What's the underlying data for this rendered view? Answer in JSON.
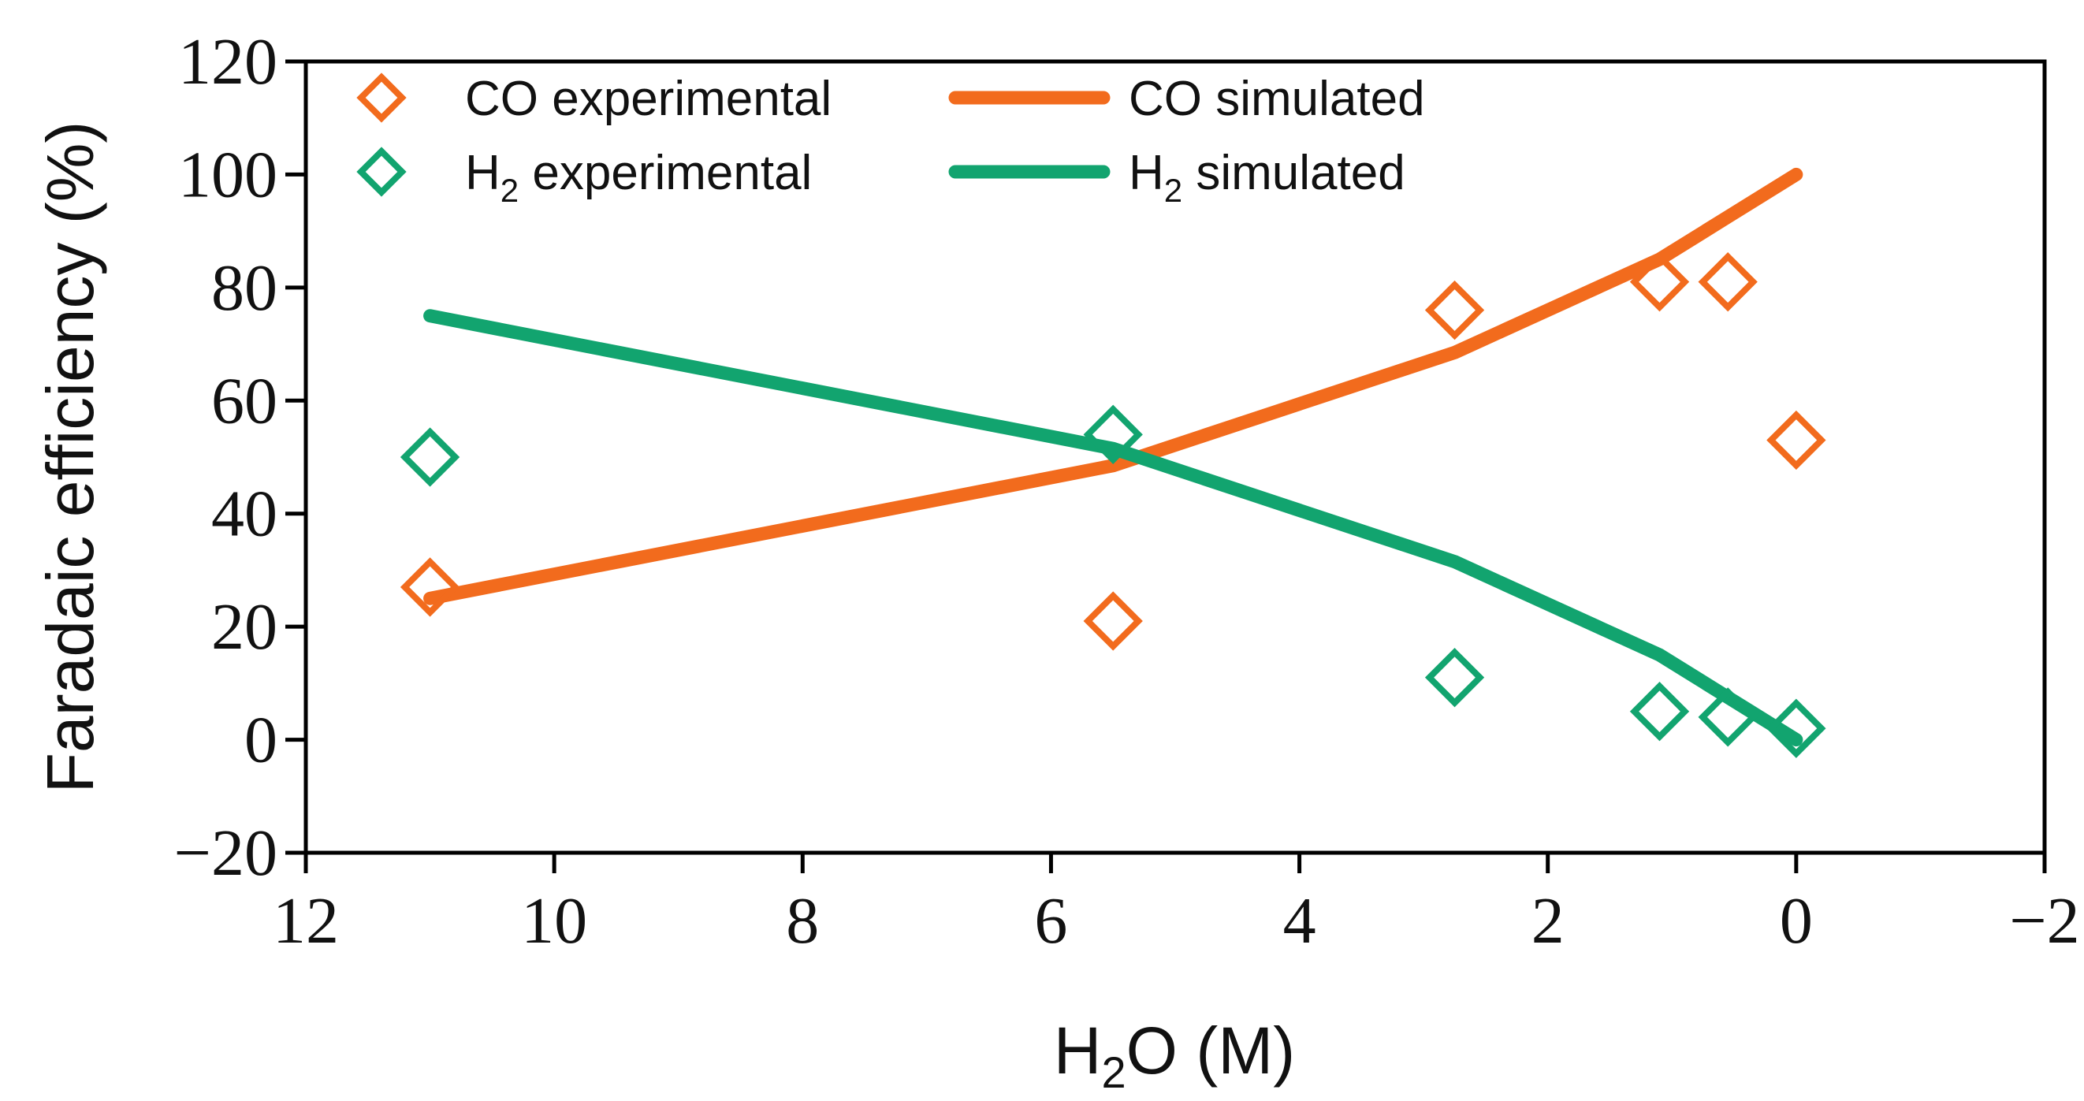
{
  "chart_data": {
    "type": "scatter",
    "xlabel": {
      "base": "H",
      "sub": "2",
      "rest": "O (M)"
    },
    "ylabel": "Faradaic efficiency (%)",
    "xlim": [
      12,
      -2
    ],
    "ylim": [
      -20,
      120
    ],
    "xticks": [
      12,
      10,
      8,
      6,
      4,
      2,
      0,
      -2
    ],
    "yticks": [
      120,
      100,
      80,
      60,
      40,
      20,
      0,
      -20
    ],
    "xtick_labels": [
      "12",
      "10",
      "8",
      "6",
      "4",
      "2",
      "0",
      "−2"
    ],
    "ytick_labels": [
      "120",
      "100",
      "80",
      "60",
      "40",
      "20",
      "0",
      "−20"
    ],
    "grid": false,
    "legend_position": "top-left",
    "colors": {
      "co": "#F26B1D",
      "h2": "#12A46F"
    },
    "series": [
      {
        "name": "CO experimental",
        "legend": {
          "base": "CO experimental",
          "sub": "",
          "rest": ""
        },
        "kind": "marker",
        "color_key": "co",
        "x": [
          11.0,
          5.5,
          2.75,
          1.1,
          0.55,
          0.0
        ],
        "y": [
          27,
          21,
          76,
          81,
          81,
          53
        ]
      },
      {
        "name": "CO simulated",
        "legend": {
          "base": "CO simulated",
          "sub": "",
          "rest": ""
        },
        "kind": "line",
        "color_key": "co",
        "x": [
          11.0,
          5.5,
          2.75,
          1.1,
          0.55,
          0.0
        ],
        "y": [
          25,
          48.5,
          68.5,
          85,
          92.5,
          100
        ]
      },
      {
        "name": "H2 experimental",
        "legend": {
          "base": "H",
          "sub": "2",
          "rest": " experimental"
        },
        "kind": "marker",
        "color_key": "h2",
        "x": [
          11.0,
          5.5,
          2.75,
          1.1,
          0.55,
          0.0
        ],
        "y": [
          50,
          54,
          11,
          5,
          4,
          2
        ]
      },
      {
        "name": "H2 simulated",
        "legend": {
          "base": "H",
          "sub": "2",
          "rest": " simulated"
        },
        "kind": "line",
        "color_key": "h2",
        "x": [
          11.0,
          5.5,
          2.75,
          1.1,
          0.55,
          0.0
        ],
        "y": [
          75,
          51.5,
          31.5,
          15,
          7.5,
          0
        ]
      }
    ]
  }
}
